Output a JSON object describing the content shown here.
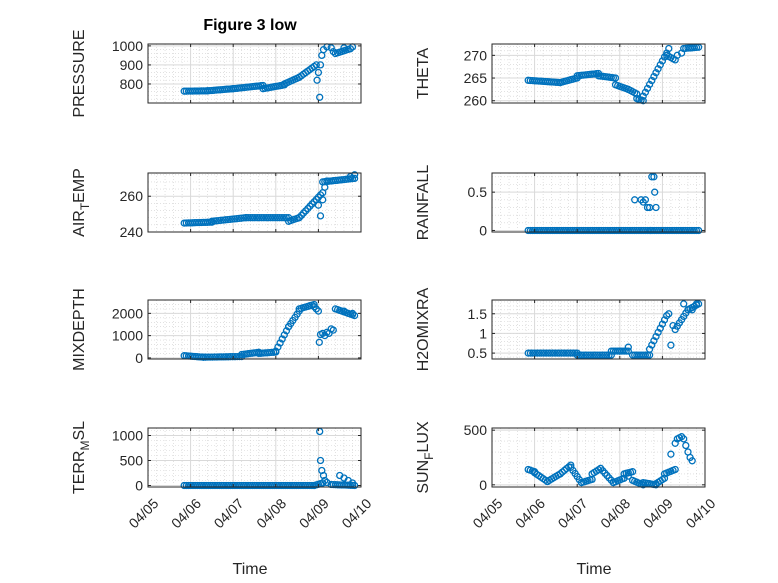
{
  "figure": {
    "title": "Figure 3 low",
    "marker_color": "#0072BD",
    "x_ticks": [
      "04/05",
      "04/06",
      "04/07",
      "04/08",
      "04/09",
      "04/10"
    ],
    "xlabel": "Time"
  },
  "chart_data": [
    {
      "type": "scatter",
      "ylabel_main": "PRESSURE",
      "ylabel_sub": "",
      "ylabel_tail": "",
      "xlim": [
        0,
        5
      ],
      "ylim": [
        700,
        1010
      ],
      "yticks": [
        800,
        900,
        1000
      ],
      "grid": true,
      "segments": [
        [
          0.85,
          1.4,
          762,
          764
        ],
        [
          1.4,
          2.0,
          764,
          775
        ],
        [
          2.0,
          2.7,
          775,
          792
        ],
        [
          2.7,
          3.2,
          775,
          795
        ],
        [
          3.2,
          3.55,
          800,
          835
        ],
        [
          3.55,
          3.95,
          835,
          900
        ],
        [
          4.4,
          4.75,
          960,
          985
        ]
      ],
      "points": [
        [
          3.97,
          820
        ],
        [
          4.0,
          860
        ],
        [
          4.03,
          730
        ],
        [
          4.05,
          900
        ],
        [
          4.08,
          950
        ],
        [
          4.12,
          980
        ],
        [
          4.2,
          995
        ],
        [
          4.3,
          990
        ],
        [
          4.35,
          970
        ],
        [
          4.6,
          990
        ],
        [
          4.8,
          995
        ]
      ]
    },
    {
      "type": "scatter",
      "ylabel_main": "THETA",
      "ylabel_sub": "",
      "ylabel_tail": "",
      "xlim": [
        0,
        5
      ],
      "ylim": [
        259.5,
        272.5
      ],
      "yticks": [
        260,
        265,
        270
      ],
      "grid": true,
      "segments": [
        [
          0.85,
          1.6,
          264.5,
          264.0
        ],
        [
          1.6,
          2.0,
          264.0,
          265.0
        ],
        [
          2.0,
          2.5,
          265.5,
          266.0
        ],
        [
          2.5,
          2.9,
          265.5,
          265.0
        ],
        [
          2.9,
          3.2,
          263.5,
          262.5
        ],
        [
          3.2,
          3.4,
          262.5,
          261.5
        ],
        [
          3.4,
          3.55,
          260.5,
          260.0
        ],
        [
          3.55,
          4.1,
          261.0,
          270.5
        ],
        [
          4.1,
          4.3,
          270.0,
          269.0
        ],
        [
          4.5,
          4.85,
          271.5,
          271.8
        ]
      ],
      "points": [
        [
          3.45,
          260.2
        ],
        [
          4.15,
          271.5
        ],
        [
          4.35,
          270.0
        ],
        [
          4.45,
          270.5
        ]
      ]
    },
    {
      "type": "scatter",
      "ylabel_main": "AIR",
      "ylabel_sub": "T",
      "ylabel_tail": "EMP",
      "xlim": [
        0,
        5
      ],
      "ylim": [
        240,
        273
      ],
      "yticks": [
        240,
        260
      ],
      "grid": true,
      "segments": [
        [
          0.85,
          1.5,
          245,
          245.5
        ],
        [
          1.5,
          2.3,
          246,
          248
        ],
        [
          2.3,
          3.3,
          248,
          248
        ],
        [
          3.3,
          3.55,
          246,
          248
        ],
        [
          3.55,
          4.1,
          248,
          262
        ],
        [
          4.1,
          4.85,
          268,
          270
        ]
      ],
      "points": [
        [
          4.0,
          255
        ],
        [
          4.05,
          249
        ],
        [
          4.1,
          258
        ],
        [
          4.15,
          265
        ],
        [
          4.2,
          268.5
        ],
        [
          4.75,
          271
        ],
        [
          4.85,
          272
        ]
      ]
    },
    {
      "type": "scatter",
      "ylabel_main": "RAINFALL",
      "ylabel_sub": "",
      "ylabel_tail": "",
      "xlim": [
        0,
        5
      ],
      "ylim": [
        -0.02,
        0.75
      ],
      "yticks": [
        0,
        0.5
      ],
      "grid": true,
      "segments": [
        [
          0.85,
          4.85,
          0,
          0
        ]
      ],
      "points": [
        [
          3.35,
          0.4
        ],
        [
          3.5,
          0.4
        ],
        [
          3.55,
          0.37
        ],
        [
          3.6,
          0.4
        ],
        [
          3.65,
          0.3
        ],
        [
          3.7,
          0.3
        ],
        [
          3.75,
          0.7
        ],
        [
          3.8,
          0.7
        ],
        [
          3.82,
          0.5
        ],
        [
          3.85,
          0.3
        ],
        [
          3.72,
          0.0
        ]
      ]
    },
    {
      "type": "scatter",
      "ylabel_main": "MIXDEPTH",
      "ylabel_sub": "",
      "ylabel_tail": "",
      "xlim": [
        0,
        5
      ],
      "ylim": [
        -50,
        2600
      ],
      "yticks": [
        0,
        1000,
        2000
      ],
      "grid": true,
      "segments": [
        [
          0.85,
          1.3,
          100,
          30
        ],
        [
          1.3,
          2.2,
          30,
          60
        ],
        [
          2.2,
          2.6,
          150,
          250
        ],
        [
          2.6,
          3.0,
          200,
          260
        ],
        [
          3.0,
          3.3,
          300,
          1400
        ],
        [
          3.3,
          3.55,
          1400,
          2100
        ],
        [
          3.55,
          3.9,
          2200,
          2400
        ],
        [
          3.9,
          4.0,
          2300,
          2100
        ],
        [
          4.4,
          4.85,
          2200,
          1900
        ]
      ],
      "points": [
        [
          4.02,
          700
        ],
        [
          4.05,
          1050
        ],
        [
          4.1,
          1100
        ],
        [
          4.15,
          1000
        ],
        [
          4.2,
          1150
        ],
        [
          4.25,
          1100
        ],
        [
          4.3,
          1300
        ],
        [
          4.35,
          1250
        ],
        [
          4.6,
          2100
        ],
        [
          4.8,
          2000
        ]
      ]
    },
    {
      "type": "scatter",
      "ylabel_main": "H2OMIXRA",
      "ylabel_sub": "",
      "ylabel_tail": "",
      "xlim": [
        0,
        5
      ],
      "ylim": [
        0.35,
        1.85
      ],
      "yticks": [
        0.5,
        1,
        1.5
      ],
      "grid": true,
      "segments": [
        [
          0.85,
          2.0,
          0.5,
          0.5
        ],
        [
          2.0,
          2.8,
          0.45,
          0.45
        ],
        [
          2.8,
          3.0,
          0.55,
          0.55
        ],
        [
          3.0,
          3.2,
          0.55,
          0.55
        ],
        [
          3.3,
          3.7,
          0.45,
          0.45
        ],
        [
          3.7,
          4.1,
          0.6,
          1.45
        ],
        [
          4.3,
          4.6,
          1.1,
          1.6
        ],
        [
          4.6,
          4.85,
          1.6,
          1.75
        ]
      ],
      "points": [
        [
          3.2,
          0.65
        ],
        [
          4.15,
          1.5
        ],
        [
          4.2,
          0.7
        ],
        [
          4.25,
          1.2
        ],
        [
          4.5,
          1.75
        ],
        [
          4.7,
          1.6
        ],
        [
          4.8,
          1.75
        ]
      ]
    },
    {
      "type": "scatter",
      "ylabel_main": "TERR",
      "ylabel_sub": "M",
      "ylabel_tail": "SL",
      "xlim": [
        0,
        5
      ],
      "ylim": [
        -30,
        1150
      ],
      "yticks": [
        0,
        500,
        1000
      ],
      "grid": true,
      "segments": [
        [
          0.85,
          3.9,
          0,
          0
        ],
        [
          3.9,
          4.1,
          0,
          50
        ],
        [
          4.3,
          4.85,
          20,
          0
        ]
      ],
      "points": [
        [
          4.03,
          1080
        ],
        [
          4.05,
          500
        ],
        [
          4.08,
          300
        ],
        [
          4.12,
          200
        ],
        [
          4.15,
          100
        ],
        [
          4.2,
          60
        ],
        [
          4.5,
          200
        ],
        [
          4.6,
          150
        ],
        [
          4.7,
          100
        ],
        [
          4.8,
          50
        ]
      ]
    },
    {
      "type": "scatter",
      "ylabel_main": "SUN",
      "ylabel_sub": "F",
      "ylabel_tail": "LUX",
      "xlim": [
        0,
        5
      ],
      "ylim": [
        -20,
        520
      ],
      "yticks": [
        0,
        500
      ],
      "grid": true,
      "segments": [
        [
          0.85,
          1.0,
          140,
          120
        ],
        [
          1.0,
          1.3,
          110,
          30
        ],
        [
          1.3,
          1.6,
          30,
          100
        ],
        [
          1.6,
          1.85,
          100,
          180
        ],
        [
          1.85,
          2.1,
          160,
          20
        ],
        [
          2.1,
          2.35,
          20,
          50
        ],
        [
          2.35,
          2.55,
          100,
          150
        ],
        [
          2.55,
          2.85,
          150,
          20
        ],
        [
          2.85,
          3.1,
          20,
          60
        ],
        [
          3.1,
          3.3,
          100,
          120
        ],
        [
          3.3,
          3.55,
          40,
          0
        ],
        [
          3.55,
          3.85,
          20,
          0
        ],
        [
          3.85,
          4.05,
          10,
          60
        ],
        [
          4.05,
          4.3,
          100,
          140
        ]
      ],
      "points": [
        [
          3.2,
          80
        ],
        [
          4.2,
          280
        ],
        [
          4.3,
          380
        ],
        [
          4.35,
          420
        ],
        [
          4.4,
          430
        ],
        [
          4.45,
          440
        ],
        [
          4.5,
          420
        ],
        [
          4.55,
          360
        ],
        [
          4.6,
          300
        ],
        [
          4.65,
          250
        ],
        [
          4.7,
          220
        ]
      ]
    }
  ]
}
